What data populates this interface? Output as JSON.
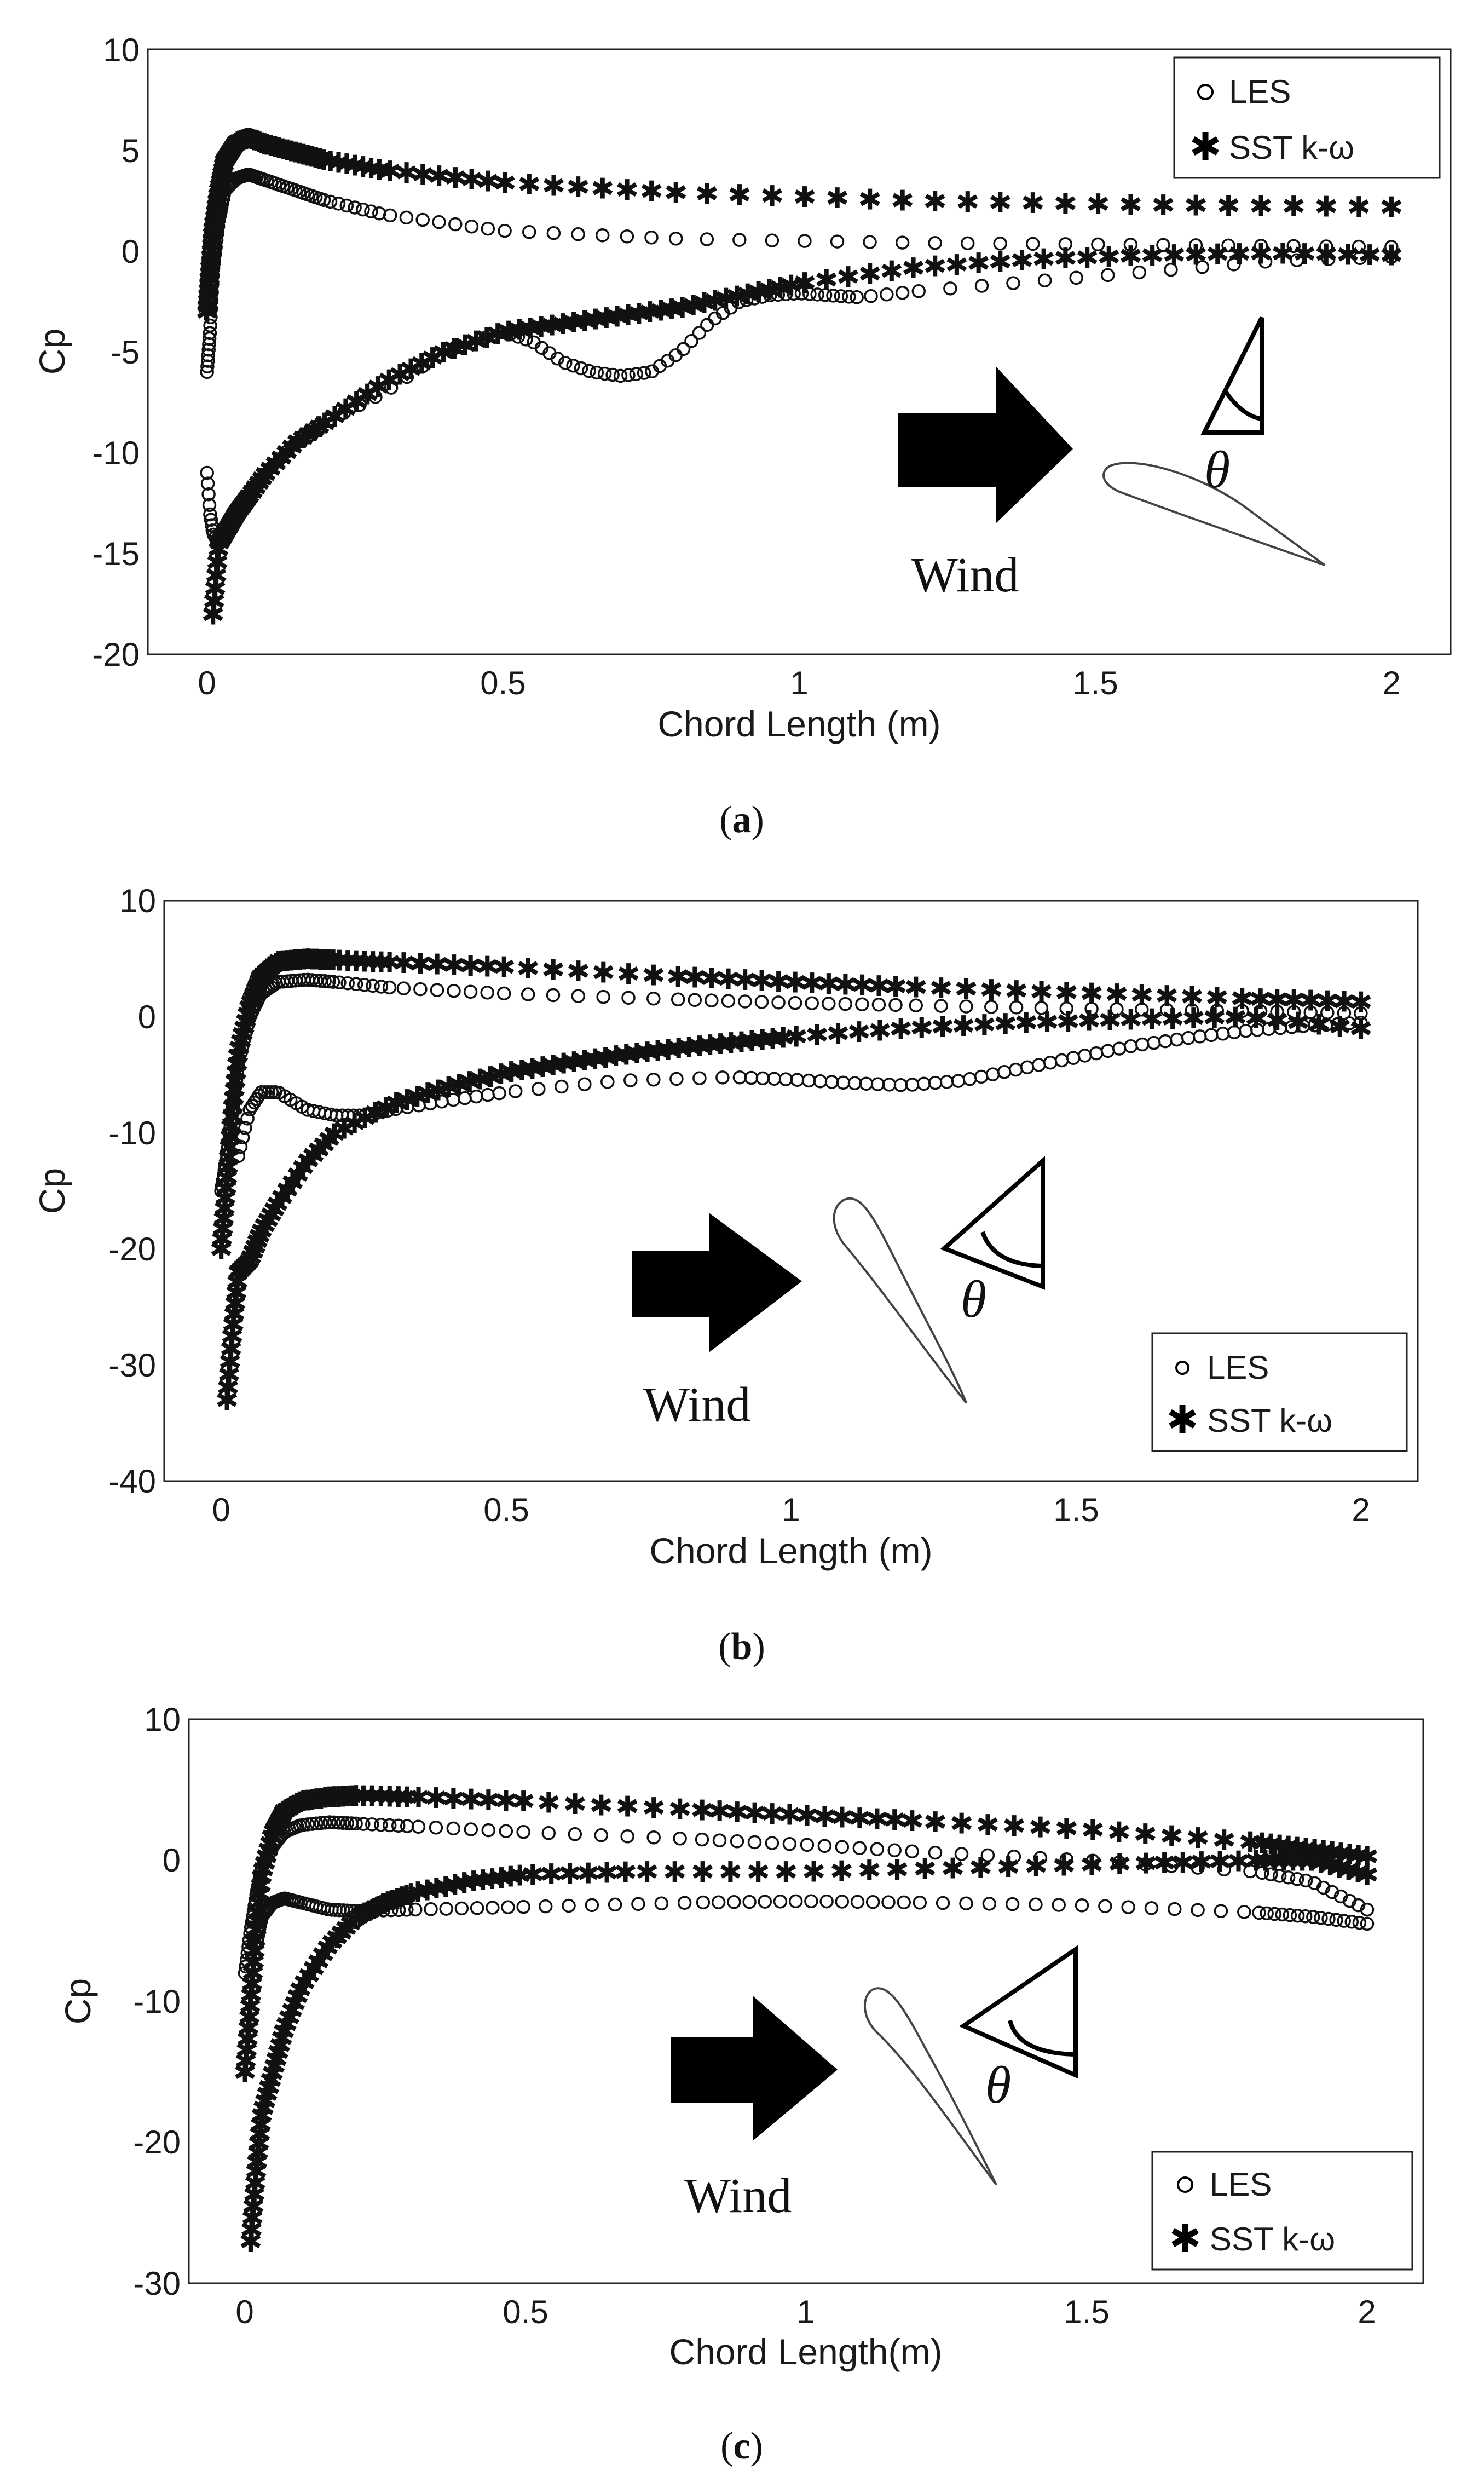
{
  "figure": {
    "wind_label": "Wind",
    "theta_label": "θ"
  },
  "chart_data": [
    {
      "type": "scatter",
      "panel": "a",
      "caption_open": "(",
      "caption_letter": "a",
      "caption_close": ")",
      "xlabel": "Chord Length (m)",
      "ylabel": "Cp",
      "xlim": [
        -0.1,
        2.1
      ],
      "ylim": [
        -20,
        10
      ],
      "xticks": [
        0,
        0.5,
        1,
        1.5,
        2
      ],
      "xtick_labels": [
        "0",
        "0.5",
        "1",
        "1.5",
        "2"
      ],
      "yticks": [
        10,
        5,
        0,
        -5,
        -10,
        -15,
        -20
      ],
      "ytick_labels": [
        "10",
        "5",
        "0",
        "-5",
        "-10",
        "-15",
        "-20"
      ],
      "legend": [
        "LES",
        "SST k-ω"
      ],
      "legend_position": "top-right",
      "series": [
        {
          "name": "LES",
          "marker": "circle",
          "curves": [
            {
              "x": [
                0,
                0.005,
                0.01,
                0.02,
                0.03,
                0.05,
                0.07,
                0.1,
                0.15,
                0.2,
                0.3,
                0.5,
                0.8,
                1.2,
                1.6,
                2.0
              ],
              "y": [
                -6,
                -4,
                -1,
                1.5,
                3,
                3.6,
                3.8,
                3.5,
                3.0,
                2.5,
                1.8,
                1.0,
                0.6,
                0.4,
                0.3,
                0.2
              ]
            },
            {
              "x": [
                0,
                0.005,
                0.01,
                0.02,
                0.03,
                0.05,
                0.07,
                0.1,
                0.15,
                0.2,
                0.3,
                0.4,
                0.5,
                0.55,
                0.6,
                0.65,
                0.7,
                0.75,
                0.8,
                0.85,
                0.9,
                0.95,
                1.0,
                1.05,
                1.1,
                1.2,
                1.4,
                1.6,
                1.8,
                2.0
              ],
              "y": [
                -11,
                -13,
                -14,
                -14.5,
                -14,
                -13,
                -12,
                -11,
                -9.5,
                -8.5,
                -7,
                -5,
                -4,
                -4.5,
                -5.5,
                -6,
                -6.2,
                -6,
                -5,
                -3.5,
                -2.5,
                -2.2,
                -2.1,
                -2.2,
                -2.3,
                -2.0,
                -1.5,
                -1.0,
                -0.5,
                -0.3
              ]
            }
          ]
        },
        {
          "name": "SST k-ω",
          "marker": "star",
          "curves": [
            {
              "x": [
                0,
                0.005,
                0.01,
                0.02,
                0.03,
                0.05,
                0.07,
                0.1,
                0.15,
                0.2,
                0.3,
                0.5,
                0.8,
                1.2,
                1.6,
                2.0
              ],
              "y": [
                -3,
                -1,
                1,
                3,
                4.5,
                5.4,
                5.6,
                5.3,
                4.9,
                4.5,
                4.0,
                3.4,
                2.9,
                2.5,
                2.3,
                2.2
              ]
            },
            {
              "x": [
                0.01,
                0.02,
                0.03,
                0.05,
                0.07,
                0.1,
                0.15,
                0.2,
                0.3,
                0.4,
                0.5,
                0.6,
                0.7,
                0.8,
                0.9,
                1.0,
                1.2,
                1.4,
                1.6,
                1.8,
                2.0
              ],
              "y": [
                -18,
                -14.5,
                -14,
                -13,
                -12.2,
                -11,
                -9.5,
                -8.5,
                -6.5,
                -5,
                -4,
                -3.6,
                -3.2,
                -2.8,
                -2.2,
                -1.6,
                -0.8,
                -0.4,
                -0.2,
                -0.1,
                -0.2
              ]
            }
          ]
        }
      ]
    },
    {
      "type": "scatter",
      "panel": "b",
      "caption_open": "(",
      "caption_letter": "b",
      "caption_close": ")",
      "xlabel": "Chord Length (m)",
      "ylabel": "Cp",
      "xlim": [
        -0.1,
        2.1
      ],
      "ylim": [
        -40,
        10
      ],
      "xticks": [
        0,
        0.5,
        1,
        1.5,
        2
      ],
      "xtick_labels": [
        "0",
        "0.5",
        "1",
        "1.5",
        "2"
      ],
      "yticks": [
        10,
        0,
        -10,
        -20,
        -30,
        -40
      ],
      "ytick_labels": [
        "10",
        "0",
        "-10",
        "-20",
        "-30",
        "-40"
      ],
      "legend": [
        "LES",
        "SST k-ω"
      ],
      "legend_position": "bottom-right",
      "series": [
        {
          "name": "LES",
          "marker": "circle",
          "curves": [
            {
              "x": [
                0,
                0.01,
                0.02,
                0.03,
                0.05,
                0.07,
                0.1,
                0.15,
                0.2,
                0.3,
                0.5,
                0.8,
                1.0,
                1.2,
                1.5,
                1.8,
                2.0
              ],
              "y": [
                -15,
                -12,
                -8,
                -4,
                0,
                2,
                3,
                3.2,
                3,
                2.5,
                2,
                1.5,
                1.2,
                1,
                0.7,
                0.5,
                0.3
              ]
            },
            {
              "x": [
                0.03,
                0.05,
                0.07,
                0.1,
                0.15,
                0.2,
                0.25,
                0.3,
                0.4,
                0.5,
                0.7,
                0.9,
                1.0,
                1.1,
                1.2,
                1.3,
                1.4,
                1.5,
                1.6,
                1.7,
                1.8,
                1.9,
                2.0
              ],
              "y": [
                -12,
                -8,
                -6.5,
                -6.5,
                -8,
                -8.5,
                -8.5,
                -8,
                -7.2,
                -6.5,
                -5.5,
                -5.2,
                -5.4,
                -5.7,
                -5.9,
                -5.5,
                -4.5,
                -3.5,
                -2.5,
                -1.8,
                -1.2,
                -0.8,
                -0.5
              ]
            }
          ]
        },
        {
          "name": "SST k-ω",
          "marker": "star",
          "curves": [
            {
              "x": [
                0,
                0.01,
                0.02,
                0.03,
                0.05,
                0.07,
                0.1,
                0.15,
                0.2,
                0.3,
                0.5,
                0.8,
                1.0,
                1.2,
                1.5,
                1.8,
                2.0
              ],
              "y": [
                -20,
                -14,
                -8,
                -3,
                1,
                3.5,
                4.8,
                5,
                4.9,
                4.7,
                4.3,
                3.5,
                3,
                2.6,
                2.1,
                1.6,
                1.3
              ]
            },
            {
              "x": [
                0.01,
                0.02,
                0.03,
                0.05,
                0.07,
                0.1,
                0.15,
                0.2,
                0.3,
                0.4,
                0.5,
                0.6,
                0.7,
                0.8,
                0.9,
                1.0,
                1.2,
                1.4,
                1.6,
                1.8,
                2.0
              ],
              "y": [
                -33,
                -27,
                -22,
                -21,
                -18.5,
                -16,
                -12.5,
                -10,
                -7.5,
                -6,
                -4.8,
                -4,
                -3.3,
                -2.7,
                -2.2,
                -1.7,
                -1,
                -0.5,
                -0.2,
                0,
                -1
              ]
            }
          ]
        }
      ]
    },
    {
      "type": "scatter",
      "panel": "c",
      "caption_open": "(",
      "caption_letter": "c",
      "caption_close": ")",
      "xlabel": "Chord Length(m)",
      "ylabel": "Cp",
      "xlim": [
        -0.1,
        2.1
      ],
      "ylim": [
        -30,
        10
      ],
      "xticks": [
        0,
        0.5,
        1,
        1.5,
        2
      ],
      "xtick_labels": [
        "0",
        "0.5",
        "1",
        "1.5",
        "2"
      ],
      "yticks": [
        10,
        0,
        -10,
        -20,
        -30
      ],
      "ytick_labels": [
        "10",
        "0",
        "-10",
        "-20",
        "-30"
      ],
      "legend": [
        "LES",
        "SST k-ω"
      ],
      "legend_position": "bottom-right",
      "series": [
        {
          "name": "LES",
          "marker": "circle",
          "curves": [
            {
              "x": [
                0,
                0.01,
                0.02,
                0.03,
                0.05,
                0.07,
                0.1,
                0.15,
                0.2,
                0.3,
                0.5,
                0.8,
                1.0,
                1.2,
                1.5,
                1.8,
                1.9,
                2.0
              ],
              "y": [
                -8,
                -5,
                -2.5,
                -0.5,
                1,
                2,
                2.5,
                2.7,
                2.6,
                2.4,
                2,
                1.5,
                1.1,
                0.6,
                0,
                -0.8,
                -1.5,
                -3.5
              ]
            },
            {
              "x": [
                0.02,
                0.03,
                0.05,
                0.07,
                0.1,
                0.15,
                0.2,
                0.3,
                0.5,
                0.8,
                1.0,
                1.2,
                1.5,
                1.8,
                1.9,
                2.0
              ],
              "y": [
                -6,
                -4,
                -3,
                -2.7,
                -3,
                -3.5,
                -3.6,
                -3.5,
                -3.3,
                -3,
                -2.9,
                -3,
                -3.2,
                -3.7,
                -4,
                -4.5
              ]
            }
          ]
        },
        {
          "name": "SST k-ω",
          "marker": "star",
          "curves": [
            {
              "x": [
                0,
                0.01,
                0.02,
                0.03,
                0.05,
                0.07,
                0.1,
                0.15,
                0.2,
                0.3,
                0.5,
                0.8,
                1.0,
                1.2,
                1.5,
                1.8,
                1.9,
                2.0
              ],
              "y": [
                -15,
                -10,
                -5,
                -1,
                2,
                3.5,
                4.2,
                4.5,
                4.6,
                4.5,
                4.2,
                3.6,
                3.2,
                2.8,
                2.2,
                1.3,
                0.8,
                0.3
              ]
            },
            {
              "x": [
                0.01,
                0.02,
                0.03,
                0.05,
                0.07,
                0.1,
                0.15,
                0.2,
                0.25,
                0.3,
                0.4,
                0.5,
                0.7,
                1.0,
                1.3,
                1.6,
                1.8,
                1.9,
                2.0
              ],
              "y": [
                -27,
                -22,
                -18,
                -15,
                -12,
                -9,
                -6,
                -4,
                -3,
                -2.3,
                -1.5,
                -1,
                -0.8,
                -0.8,
                -0.5,
                -0.2,
                0,
                0,
                -1
              ]
            }
          ]
        }
      ]
    }
  ]
}
